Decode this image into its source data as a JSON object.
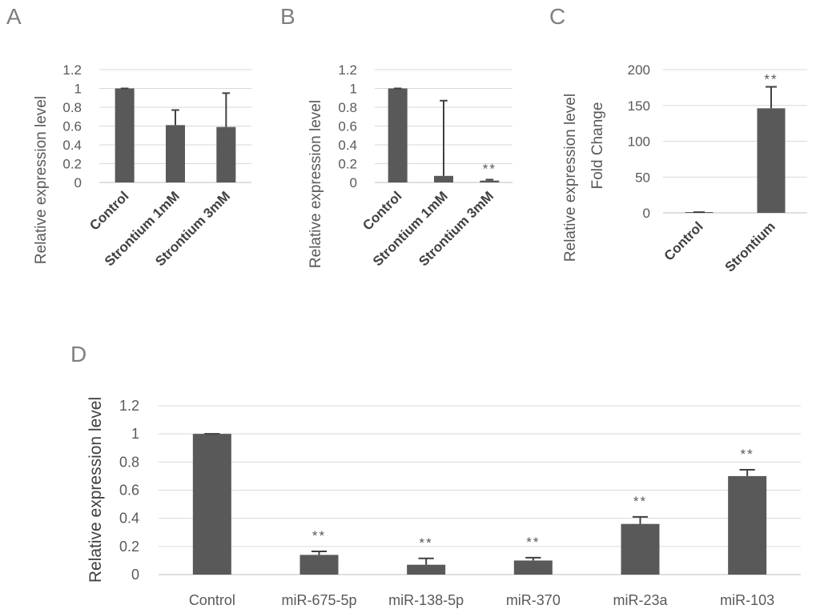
{
  "chart_data": [
    {
      "id": "A",
      "type": "bar",
      "panel_label": "A",
      "ylabel": "Relative expression level",
      "ylim": [
        0,
        1.2
      ],
      "yticks": [
        "0",
        "0.2",
        "0.4",
        "0.6",
        "0.8",
        "1",
        "1.2"
      ],
      "categories": [
        "Control",
        "Strontium 1mM",
        "Strontium 3mM"
      ],
      "values": [
        1.0,
        0.61,
        0.59
      ],
      "errors": [
        0.0,
        0.16,
        0.36
      ],
      "significance": [
        "",
        "",
        ""
      ],
      "color": "#595959"
    },
    {
      "id": "B",
      "type": "bar",
      "panel_label": "B",
      "ylabel": "Relative expression level",
      "ylim": [
        0,
        1.2
      ],
      "yticks": [
        "0",
        "0.2",
        "0.4",
        "0.6",
        "0.8",
        "1",
        "1.2"
      ],
      "categories": [
        "Control",
        "Strontium 1mM",
        "Strontium 3mM"
      ],
      "values": [
        1.0,
        0.07,
        0.02
      ],
      "errors": [
        0.0,
        0.8,
        0.01
      ],
      "significance": [
        "",
        "",
        "**"
      ],
      "color": "#595959"
    },
    {
      "id": "C",
      "type": "bar",
      "panel_label": "C",
      "ylabel": "Relative expression level",
      "ylabel2": "Fold Change",
      "ylim": [
        0,
        200
      ],
      "yticks": [
        "0",
        "50",
        "100",
        "150",
        "200"
      ],
      "categories": [
        "Control",
        "Strontium"
      ],
      "values": [
        1,
        146
      ],
      "errors": [
        0,
        30
      ],
      "significance": [
        "",
        "**"
      ],
      "color": "#595959"
    },
    {
      "id": "D",
      "type": "bar",
      "panel_label": "D",
      "ylabel": "Relative expression level",
      "ylim": [
        0,
        1.2
      ],
      "yticks": [
        "0",
        "0.2",
        "0.4",
        "0.6",
        "0.8",
        "1",
        "1.2"
      ],
      "categories": [
        "Control",
        "miR-675-5p",
        "miR-138-5p",
        "miR-370",
        "miR-23a",
        "miR-103"
      ],
      "values": [
        1.0,
        0.14,
        0.07,
        0.1,
        0.36,
        0.7
      ],
      "errors": [
        0.0,
        0.025,
        0.045,
        0.02,
        0.05,
        0.045
      ],
      "significance": [
        "",
        "**",
        "**",
        "**",
        "**",
        "**"
      ],
      "color": "#595959"
    }
  ]
}
